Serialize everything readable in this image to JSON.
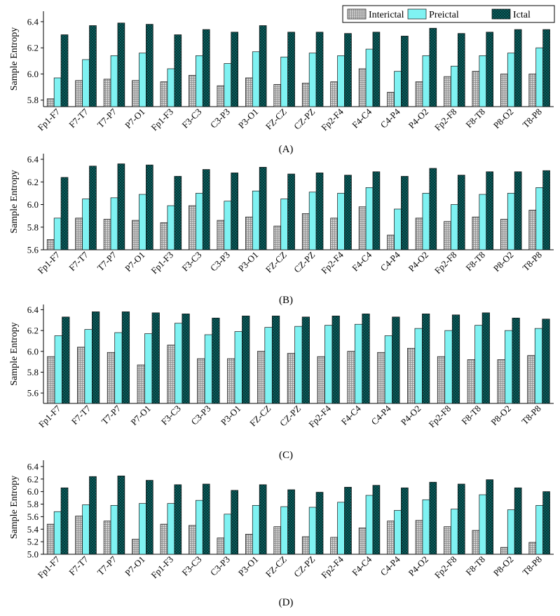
{
  "legend": {
    "position": "top-right",
    "entries": [
      {
        "name": "Interictal",
        "color": "#b8b8b8",
        "pattern": "grid"
      },
      {
        "name": "Preictal",
        "color": "#7ff2f2",
        "pattern": "solid"
      },
      {
        "name": "Ictal",
        "color": "#0e6b6b",
        "pattern": "crosshatch"
      }
    ]
  },
  "chart_data": [
    {
      "type": "bar",
      "panel_label": "(A)",
      "ylabel": "Sample Entropy",
      "ylim": [
        5.75,
        6.48
      ],
      "yticks": [
        5.8,
        6.0,
        6.2,
        6.4
      ],
      "categories": [
        "Fp1-F7",
        "F7-T7",
        "T7-P7",
        "P7-O1",
        "Fp1-F3",
        "F3-C3",
        "C3-P3",
        "P3-O1",
        "FZ-CZ",
        "CZ-PZ",
        "Fp2-F4",
        "F4-C4",
        "C4-P4",
        "P4-O2",
        "Fp2-F8",
        "F8-T8",
        "P8-O2",
        "T8-P8"
      ],
      "series": [
        {
          "name": "Interictal",
          "values": [
            5.81,
            5.95,
            5.96,
            5.95,
            5.94,
            5.99,
            5.91,
            5.97,
            5.92,
            5.93,
            5.94,
            6.04,
            5.86,
            5.94,
            5.98,
            6.02,
            6.0,
            6.0
          ]
        },
        {
          "name": "Preictal",
          "values": [
            5.97,
            6.11,
            6.14,
            6.16,
            6.04,
            6.14,
            6.08,
            6.17,
            6.13,
            6.16,
            6.14,
            6.19,
            6.02,
            6.14,
            6.06,
            6.14,
            6.16,
            6.2
          ]
        },
        {
          "name": "Ictal",
          "values": [
            6.3,
            6.37,
            6.39,
            6.38,
            6.3,
            6.34,
            6.32,
            6.37,
            6.32,
            6.32,
            6.31,
            6.32,
            6.29,
            6.35,
            6.31,
            6.32,
            6.34,
            6.34
          ]
        }
      ]
    },
    {
      "type": "bar",
      "panel_label": "(B)",
      "ylabel": "Sample Entropy",
      "ylim": [
        5.6,
        6.45
      ],
      "yticks": [
        5.6,
        5.8,
        6.0,
        6.2,
        6.4
      ],
      "categories": [
        "Fp1-F7",
        "F7-T7",
        "T7-P7",
        "P7-O1",
        "Fp1-F3",
        "F3-C3",
        "C3-P3",
        "P3-O1",
        "FZ-CZ",
        "CZ-PZ",
        "Fp2-F4",
        "F4-C4",
        "C4-P4",
        "P4-O2",
        "Fp2-F8",
        "F8-T8",
        "P8-O2",
        "T8-P8"
      ],
      "series": [
        {
          "name": "Interictal",
          "values": [
            5.69,
            5.88,
            5.87,
            5.86,
            5.84,
            5.99,
            5.86,
            5.89,
            5.81,
            5.92,
            5.88,
            5.98,
            5.73,
            5.88,
            5.85,
            5.89,
            5.87,
            5.95
          ]
        },
        {
          "name": "Preictal",
          "values": [
            5.88,
            6.05,
            6.06,
            6.09,
            5.99,
            6.1,
            6.03,
            6.12,
            6.05,
            6.11,
            6.1,
            6.15,
            5.96,
            6.1,
            6.0,
            6.09,
            6.1,
            6.15
          ]
        },
        {
          "name": "Ictal",
          "values": [
            6.24,
            6.34,
            6.36,
            6.35,
            6.25,
            6.31,
            6.28,
            6.33,
            6.27,
            6.28,
            6.26,
            6.29,
            6.25,
            6.32,
            6.26,
            6.29,
            6.29,
            6.3
          ]
        }
      ]
    },
    {
      "type": "bar",
      "panel_label": "(C)",
      "ylabel": "Sample Entropy",
      "ylim": [
        5.5,
        6.45
      ],
      "yticks": [
        5.6,
        5.8,
        6.0,
        6.2,
        6.4
      ],
      "categories": [
        "Fp1-F7",
        "F7-T7",
        "T7-P7",
        "P7-O1",
        "F3-C3",
        "C3-P3",
        "P3-O1",
        "FZ-CZ",
        "CZ-PZ",
        "Fp2-F4",
        "F4-C4",
        "C4-P4",
        "P4-O2",
        "Fp2-F8",
        "F8-T8",
        "P8-O2",
        "T8-P8"
      ],
      "series": [
        {
          "name": "Interictal",
          "values": [
            5.95,
            6.04,
            5.99,
            5.87,
            6.06,
            5.93,
            5.93,
            6.0,
            5.98,
            5.95,
            6.0,
            5.99,
            6.03,
            5.95,
            5.92,
            5.92,
            5.96
          ]
        },
        {
          "name": "Preictal",
          "values": [
            6.15,
            6.21,
            6.18,
            6.17,
            6.27,
            6.16,
            6.19,
            6.23,
            6.24,
            6.25,
            6.26,
            6.15,
            6.22,
            6.2,
            6.25,
            6.2,
            6.22
          ]
        },
        {
          "name": "Ictal",
          "values": [
            6.33,
            6.38,
            6.38,
            6.37,
            6.36,
            6.32,
            6.34,
            6.34,
            6.33,
            6.34,
            6.36,
            6.33,
            6.36,
            6.35,
            6.37,
            6.32,
            6.31
          ]
        }
      ]
    },
    {
      "type": "bar",
      "panel_label": "(D)",
      "ylabel": "Sample Entropy",
      "ylim": [
        5.0,
        6.5
      ],
      "yticks": [
        5.0,
        5.2,
        5.4,
        5.6,
        5.8,
        6.0,
        6.2,
        6.4
      ],
      "categories": [
        "Fp1-F7",
        "F7-T7",
        "T7-P7",
        "P7-O1",
        "Fp1-F3",
        "F3-C3",
        "C3-P3",
        "P3-O1",
        "FZ-CZ",
        "CZ-PZ",
        "Fp2-F4",
        "F4-C4",
        "C4-P4",
        "P4-O2",
        "Fp2-F8",
        "F8-T8",
        "P8-O2",
        "T8-P8"
      ],
      "series": [
        {
          "name": "Interictal",
          "values": [
            5.48,
            5.61,
            5.53,
            5.24,
            5.48,
            5.46,
            5.26,
            5.32,
            5.44,
            5.28,
            5.27,
            5.42,
            5.53,
            5.54,
            5.44,
            5.38,
            5.11,
            5.19
          ]
        },
        {
          "name": "Preictal",
          "values": [
            5.68,
            5.79,
            5.78,
            5.81,
            5.81,
            5.86,
            5.64,
            5.78,
            5.76,
            5.75,
            5.83,
            5.94,
            5.7,
            5.87,
            5.72,
            5.95,
            5.71,
            5.78
          ]
        },
        {
          "name": "Ictal",
          "values": [
            6.06,
            6.24,
            6.25,
            6.18,
            6.11,
            6.12,
            6.02,
            6.11,
            6.03,
            5.99,
            6.07,
            6.1,
            6.06,
            6.15,
            6.12,
            6.19,
            6.06,
            6.0
          ]
        }
      ]
    }
  ]
}
